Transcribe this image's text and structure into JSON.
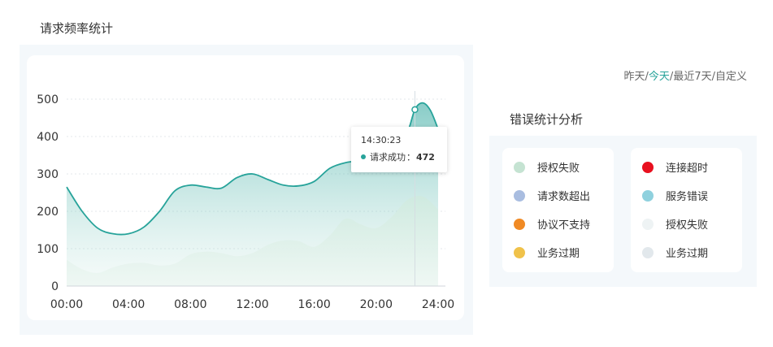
{
  "sections": {
    "left_title": "请求频率统计",
    "right_title": "错误统计分析"
  },
  "range_links": [
    {
      "label": "昨天",
      "active": false
    },
    {
      "label": "今天",
      "active": true
    },
    {
      "label": "最近7天",
      "active": false
    },
    {
      "label": "自定义",
      "active": false
    }
  ],
  "range_separator": "/",
  "tooltip": {
    "time": "14:30:23",
    "label": "请求成功",
    "separator": "：",
    "value": "472"
  },
  "chart_data": {
    "type": "area",
    "x_ticks": [
      "00:00",
      "04:00",
      "08:00",
      "12:00",
      "16:00",
      "20:00",
      "24:00"
    ],
    "y_ticks": [
      0,
      100,
      200,
      300,
      400,
      500
    ],
    "ylim": [
      0,
      500
    ],
    "xlim": [
      0,
      24
    ],
    "grid": "horizontal-dashed",
    "series": [
      {
        "color": "#27a39a",
        "x": [
          0,
          1,
          2,
          3,
          4,
          5,
          6,
          7,
          8,
          9,
          10,
          11,
          12,
          13,
          14,
          15,
          16,
          17,
          18,
          19,
          20,
          21,
          22,
          22.5,
          23,
          23.5,
          24
        ],
        "y": [
          265,
          200,
          155,
          140,
          140,
          158,
          200,
          255,
          270,
          265,
          262,
          290,
          300,
          285,
          270,
          268,
          280,
          315,
          330,
          335,
          338,
          345,
          410,
          472,
          490,
          470,
          420
        ]
      },
      {
        "color": "#bfe3d6",
        "x": [
          0,
          1,
          2,
          3,
          4,
          5,
          6,
          7,
          8,
          9,
          10,
          11,
          12,
          13,
          14,
          15,
          16,
          17,
          18,
          19,
          20,
          21,
          22,
          23,
          24
        ],
        "y": [
          70,
          45,
          35,
          50,
          60,
          62,
          55,
          60,
          85,
          92,
          88,
          80,
          88,
          110,
          122,
          120,
          105,
          135,
          180,
          165,
          155,
          185,
          230,
          240,
          205
        ]
      }
    ],
    "hover_x": 22.5
  },
  "legend_left": [
    {
      "label": "授权失败",
      "color": "#c5e3d2"
    },
    {
      "label": "请求数超出",
      "color": "#a9bde0"
    },
    {
      "label": "协议不支持",
      "color": "#f08a24"
    },
    {
      "label": "业务过期",
      "color": "#f0c24a"
    }
  ],
  "legend_right": [
    {
      "label": "连接超时",
      "color": "#e8101f"
    },
    {
      "label": "服务错误",
      "color": "#8fd1de"
    },
    {
      "label": "授权失败",
      "color": "#eef3f4"
    },
    {
      "label": "业务过期",
      "color": "#e2e8ec"
    }
  ]
}
